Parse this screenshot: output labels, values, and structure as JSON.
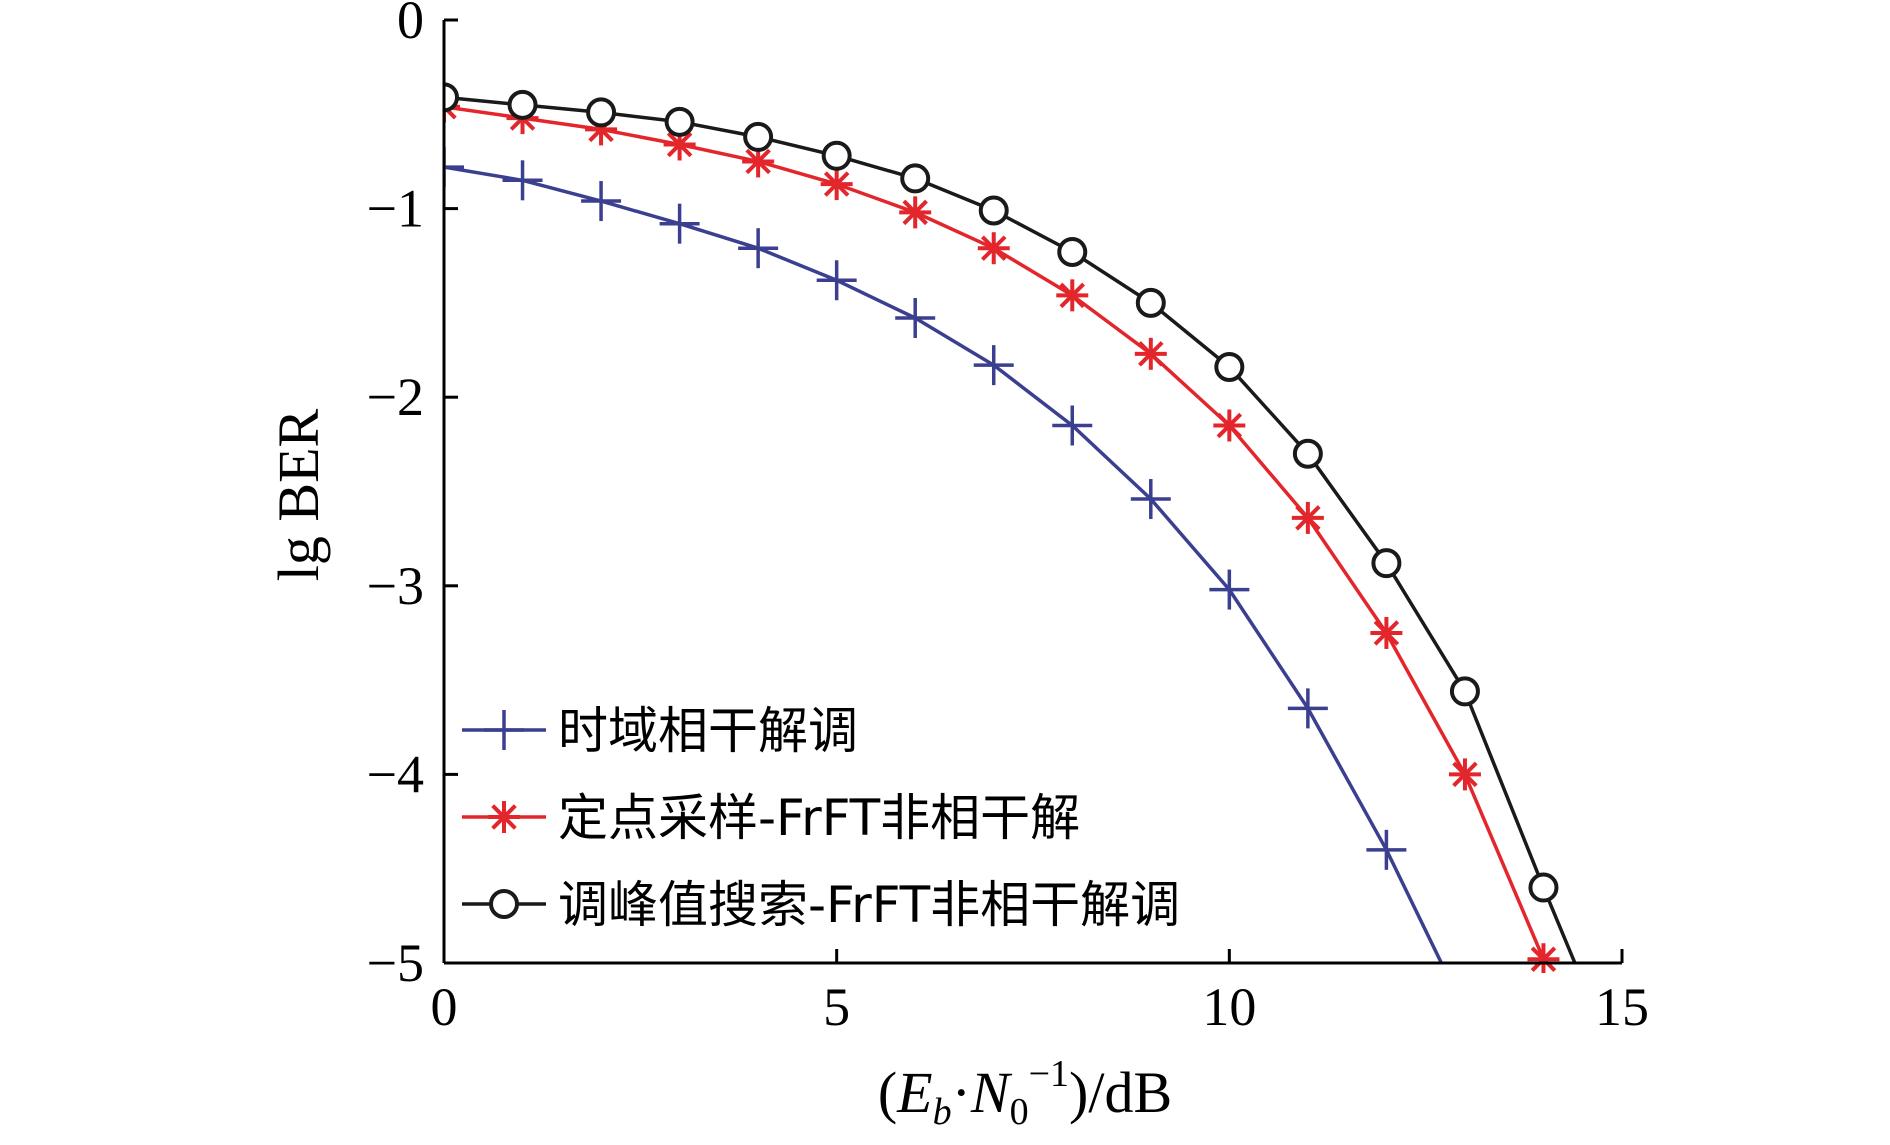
{
  "chart_data": {
    "type": "line",
    "xlabel": "(E_b·N_0^−1)/dB",
    "ylabel": "lg BER",
    "xlim": [
      0,
      15
    ],
    "ylim": [
      -5,
      0
    ],
    "xticks": [
      0,
      5,
      10,
      15
    ],
    "yticks": [
      0,
      -1,
      -2,
      -3,
      -4,
      -5
    ],
    "xtick_labels": [
      "0",
      "5",
      "10",
      "15"
    ],
    "ytick_labels": [
      "0",
      "−1",
      "−2",
      "−3",
      "−4",
      "−5"
    ],
    "grid": false,
    "legend_position": "bottom-left",
    "series": [
      {
        "name": "时域相干解调",
        "color": "#3b3f8f",
        "marker": "plus",
        "x": [
          0,
          1,
          2,
          3,
          4,
          5,
          6,
          7,
          8,
          9,
          10,
          11,
          12,
          12.7
        ],
        "y": [
          -0.78,
          -0.85,
          -0.96,
          -1.08,
          -1.21,
          -1.38,
          -1.58,
          -1.83,
          -2.15,
          -2.54,
          -3.02,
          -3.65,
          -4.4,
          -5.0
        ],
        "marked_points": 13
      },
      {
        "name": "定点采样-FrFT非相干解",
        "color": "#e3262b",
        "marker": "asterisk",
        "x": [
          0,
          1,
          2,
          3,
          4,
          5,
          6,
          7,
          8,
          9,
          10,
          11,
          12,
          13,
          14
        ],
        "y": [
          -0.46,
          -0.52,
          -0.58,
          -0.66,
          -0.75,
          -0.87,
          -1.02,
          -1.21,
          -1.46,
          -1.77,
          -2.15,
          -2.64,
          -3.25,
          -4.0,
          -4.98
        ],
        "marked_points": 15
      },
      {
        "name": "调峰值搜索-FrFT非相干解调",
        "color": "#1a1a1a",
        "marker": "circle",
        "x": [
          0,
          1,
          2,
          3,
          4,
          5,
          6,
          7,
          8,
          9,
          10,
          11,
          12,
          13,
          14,
          14.4
        ],
        "y": [
          -0.41,
          -0.45,
          -0.49,
          -0.54,
          -0.62,
          -0.72,
          -0.84,
          -1.01,
          -1.23,
          -1.5,
          -1.84,
          -2.3,
          -2.88,
          -3.56,
          -4.6,
          -5.0
        ],
        "marked_points": 15
      }
    ]
  }
}
